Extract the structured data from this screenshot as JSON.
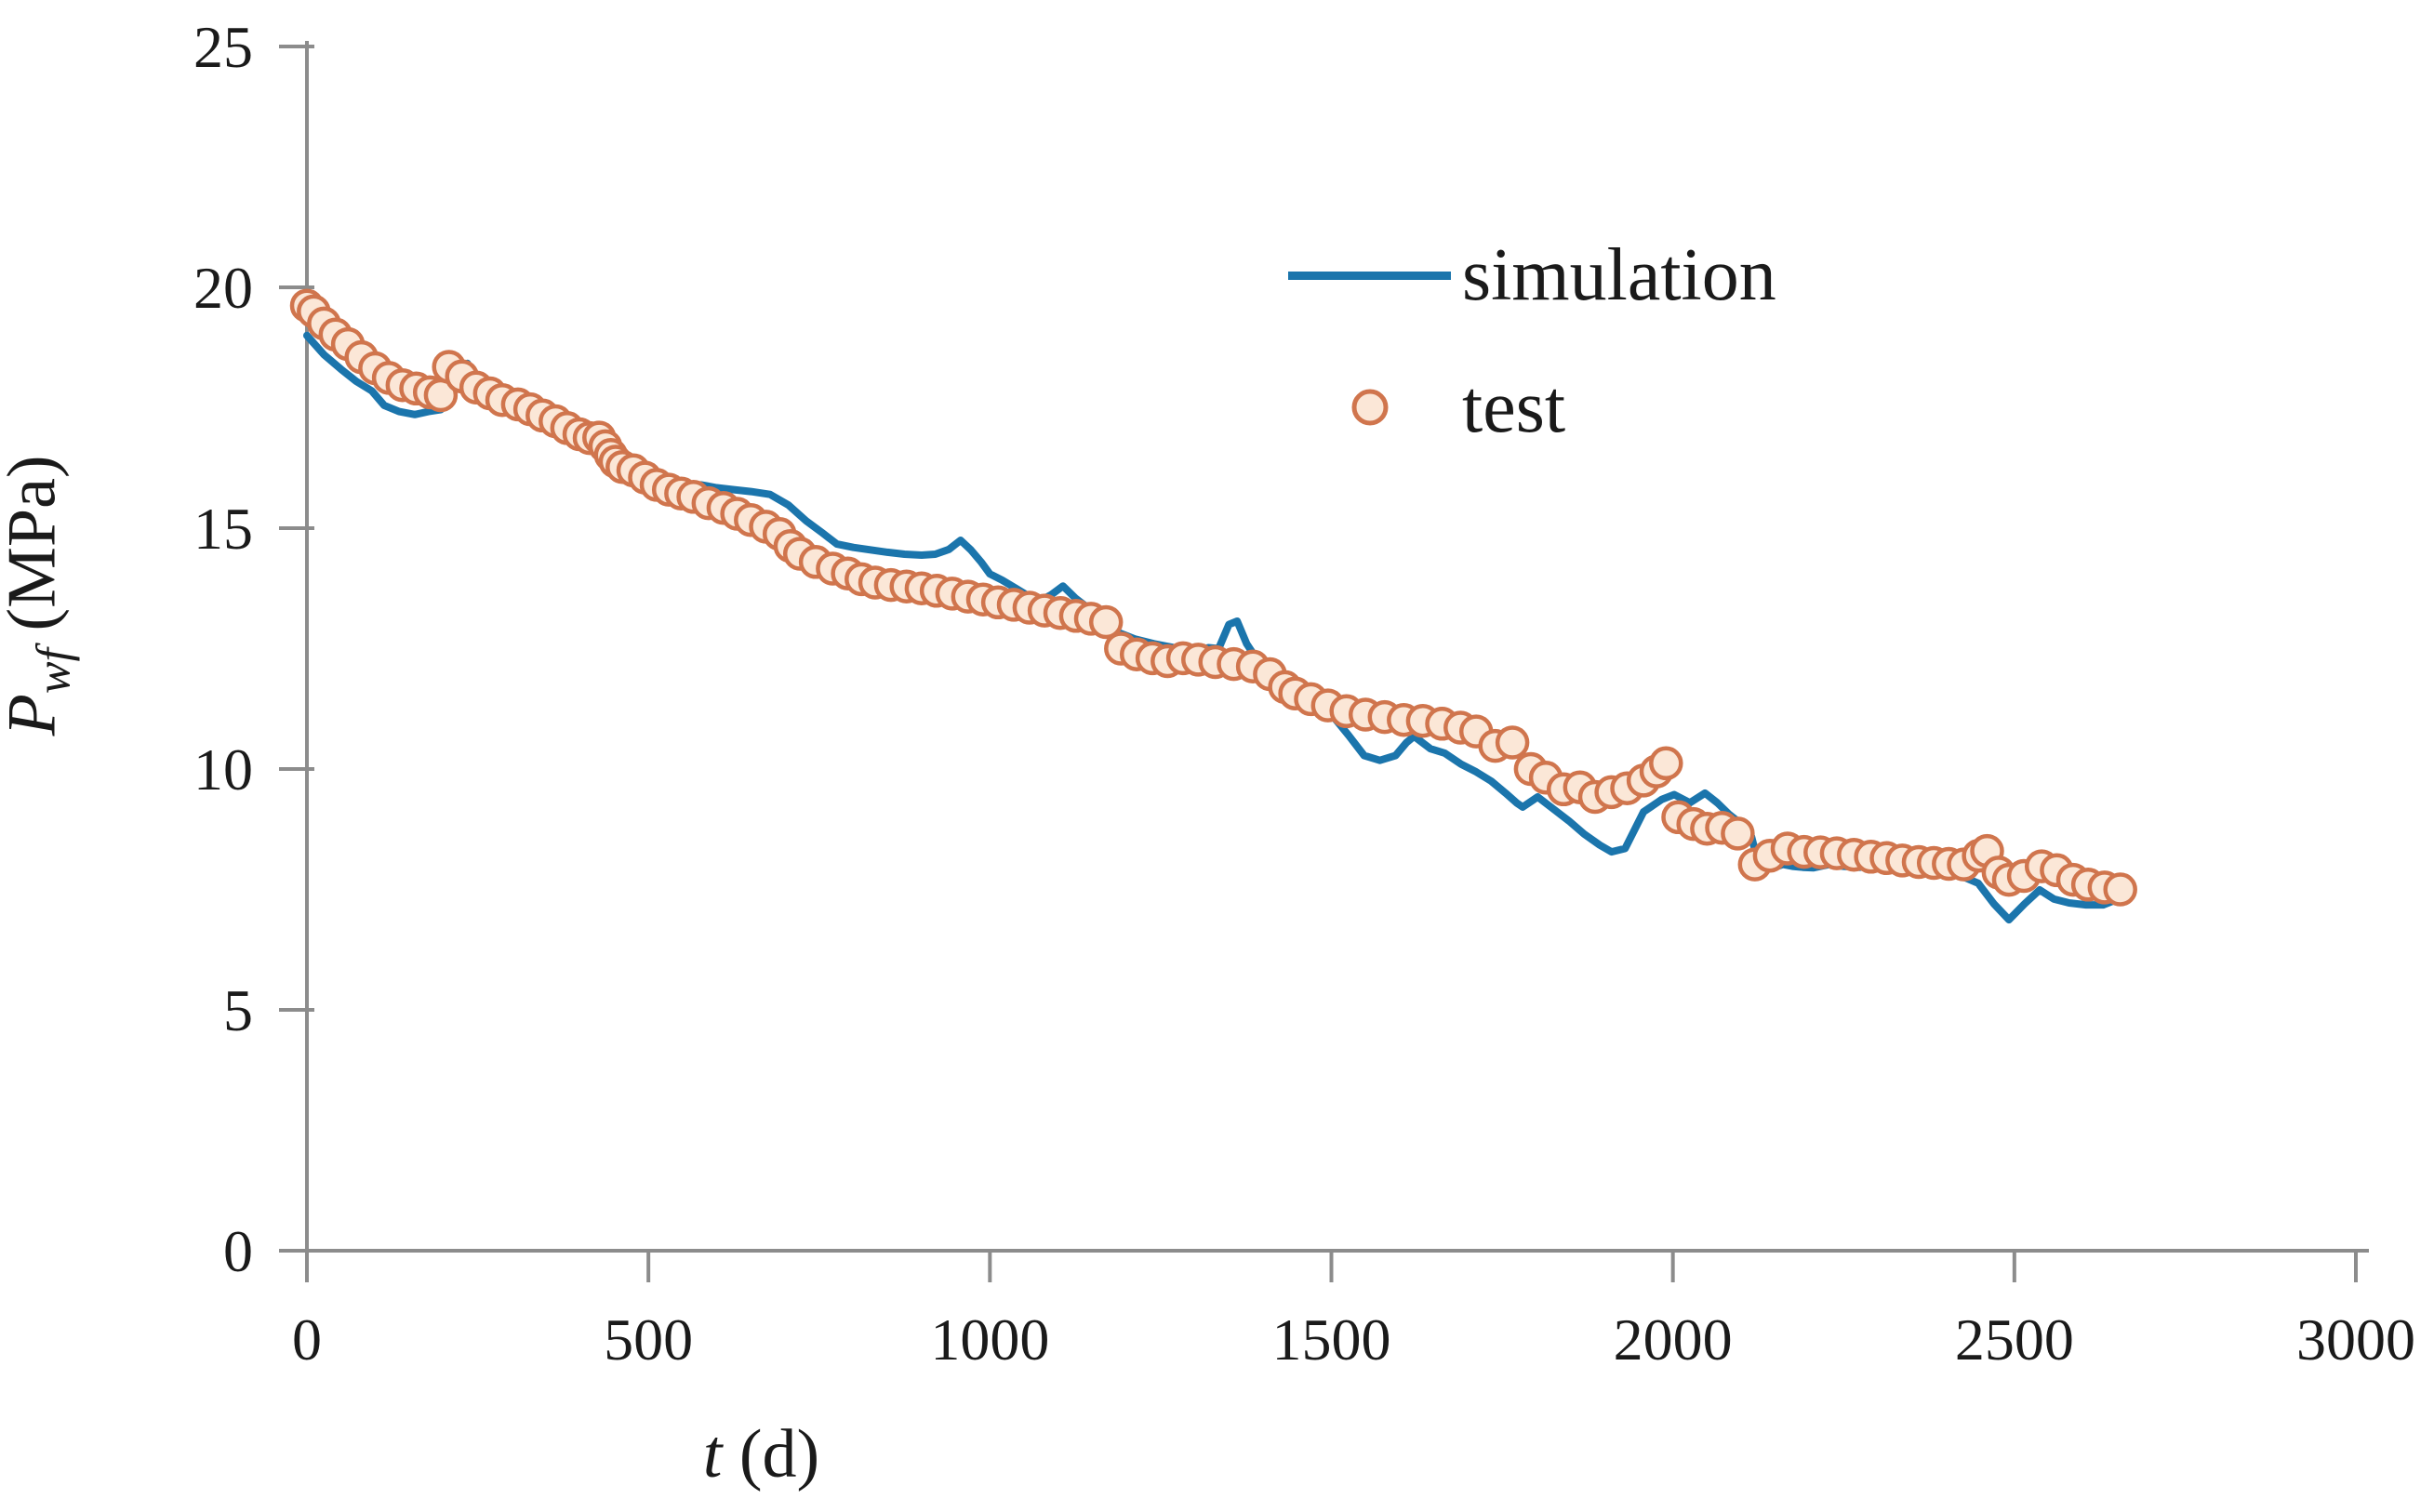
{
  "figure": {
    "background": "#ffffff",
    "text_color": "#1a1a1a",
    "axis_color": "#8c8c8c"
  },
  "chart_data": {
    "type": "line+scatter",
    "title": "",
    "xlabel_var": "t",
    "xlabel_unit": " (d)",
    "ylabel_var": "P",
    "ylabel_sub": "wf",
    "ylabel_unit": " (MPa)",
    "xlim": [
      0,
      3000
    ],
    "ylim": [
      0,
      25
    ],
    "x_ticks": [
      "0",
      "500",
      "1000",
      "1500",
      "2000",
      "2500",
      "3000"
    ],
    "x_tick_values": [
      0,
      500,
      1000,
      1500,
      2000,
      2500,
      3000
    ],
    "y_ticks": [
      "0",
      "5",
      "10",
      "15",
      "20",
      "25"
    ],
    "y_tick_values": [
      0,
      5,
      10,
      15,
      20,
      25
    ],
    "grid": false,
    "legend_position": "upper-right-inside",
    "series": [
      {
        "name": "simulation",
        "type": "line",
        "color": "#1b75ac",
        "line_width": 8,
        "points": [
          [
            0,
            19.0
          ],
          [
            25,
            18.6
          ],
          [
            50,
            18.3
          ],
          [
            72,
            18.05
          ],
          [
            95,
            17.85
          ],
          [
            113,
            17.55
          ],
          [
            135,
            17.42
          ],
          [
            158,
            17.36
          ],
          [
            178,
            17.42
          ],
          [
            196,
            17.46
          ],
          [
            215,
            17.85
          ],
          [
            235,
            18.42
          ],
          [
            250,
            17.95
          ],
          [
            265,
            17.6
          ],
          [
            285,
            17.5
          ],
          [
            305,
            17.4
          ],
          [
            327,
            17.28
          ],
          [
            350,
            17.13
          ],
          [
            372,
            16.95
          ],
          [
            395,
            16.76
          ],
          [
            418,
            16.6
          ],
          [
            432,
            16.45
          ],
          [
            445,
            16.22
          ],
          [
            460,
            16.12
          ],
          [
            478,
            16.1
          ],
          [
            497,
            16.12
          ],
          [
            510,
            16.05
          ],
          [
            528,
            15.92
          ],
          [
            545,
            15.78
          ],
          [
            560,
            15.85
          ],
          [
            577,
            15.9
          ],
          [
            600,
            15.84
          ],
          [
            625,
            15.8
          ],
          [
            650,
            15.76
          ],
          [
            678,
            15.7
          ],
          [
            705,
            15.48
          ],
          [
            731,
            15.15
          ],
          [
            755,
            14.9
          ],
          [
            776,
            14.67
          ],
          [
            800,
            14.6
          ],
          [
            825,
            14.55
          ],
          [
            850,
            14.5
          ],
          [
            875,
            14.46
          ],
          [
            900,
            14.44
          ],
          [
            920,
            14.46
          ],
          [
            940,
            14.56
          ],
          [
            957,
            14.75
          ],
          [
            972,
            14.55
          ],
          [
            987,
            14.3
          ],
          [
            1000,
            14.05
          ],
          [
            1018,
            13.92
          ],
          [
            1038,
            13.75
          ],
          [
            1058,
            13.58
          ],
          [
            1072,
            13.48
          ],
          [
            1090,
            13.62
          ],
          [
            1107,
            13.8
          ],
          [
            1125,
            13.55
          ],
          [
            1145,
            13.33
          ],
          [
            1165,
            13.12
          ],
          [
            1185,
            12.85
          ],
          [
            1212,
            12.7
          ],
          [
            1240,
            12.6
          ],
          [
            1270,
            12.52
          ],
          [
            1300,
            12.45
          ],
          [
            1320,
            12.52
          ],
          [
            1335,
            12.5
          ],
          [
            1350,
            13.0
          ],
          [
            1362,
            13.07
          ],
          [
            1376,
            12.6
          ],
          [
            1390,
            12.3
          ],
          [
            1412,
            11.75
          ],
          [
            1435,
            11.55
          ],
          [
            1457,
            11.35
          ],
          [
            1480,
            11.22
          ],
          [
            1502,
            11.1
          ],
          [
            1525,
            10.7
          ],
          [
            1548,
            10.28
          ],
          [
            1571,
            10.18
          ],
          [
            1594,
            10.28
          ],
          [
            1610,
            10.55
          ],
          [
            1621,
            10.68
          ],
          [
            1645,
            10.42
          ],
          [
            1666,
            10.33
          ],
          [
            1690,
            10.1
          ],
          [
            1712,
            9.94
          ],
          [
            1734,
            9.75
          ],
          [
            1755,
            9.5
          ],
          [
            1771,
            9.3
          ],
          [
            1780,
            9.21
          ],
          [
            1802,
            9.42
          ],
          [
            1825,
            9.17
          ],
          [
            1848,
            8.92
          ],
          [
            1870,
            8.65
          ],
          [
            1893,
            8.42
          ],
          [
            1910,
            8.28
          ],
          [
            1930,
            8.35
          ],
          [
            1957,
            9.11
          ],
          [
            1984,
            9.37
          ],
          [
            2002,
            9.47
          ],
          [
            2025,
            9.3
          ],
          [
            2047,
            9.5
          ],
          [
            2065,
            9.3
          ],
          [
            2083,
            9.05
          ],
          [
            2101,
            8.85
          ],
          [
            2115,
            8.6
          ],
          [
            2124,
            8.1
          ],
          [
            2135,
            7.98
          ],
          [
            2147,
            7.95
          ],
          [
            2161,
            8.02
          ],
          [
            2175,
            7.98
          ],
          [
            2190,
            7.96
          ],
          [
            2206,
            7.95
          ],
          [
            2229,
            8.02
          ],
          [
            2250,
            7.98
          ],
          [
            2274,
            7.96
          ],
          [
            2300,
            8.0
          ],
          [
            2325,
            8.0
          ],
          [
            2350,
            7.97
          ],
          [
            2375,
            7.95
          ],
          [
            2400,
            7.9
          ],
          [
            2425,
            7.76
          ],
          [
            2447,
            7.63
          ],
          [
            2470,
            7.2
          ],
          [
            2492,
            6.87
          ],
          [
            2515,
            7.2
          ],
          [
            2537,
            7.49
          ],
          [
            2558,
            7.3
          ],
          [
            2580,
            7.22
          ],
          [
            2605,
            7.18
          ],
          [
            2630,
            7.18
          ],
          [
            2648,
            7.28
          ],
          [
            2662,
            7.3
          ]
        ]
      },
      {
        "name": "test",
        "type": "scatter",
        "marker": "open-circle",
        "edge_color": "#d0754d",
        "fill_color": "#fbe7d7",
        "marker_radius": 16,
        "marker_stroke": 4.5,
        "points": [
          [
            0,
            19.62
          ],
          [
            10,
            19.5
          ],
          [
            25,
            19.25
          ],
          [
            42,
            19.02
          ],
          [
            60,
            18.82
          ],
          [
            80,
            18.55
          ],
          [
            100,
            18.32
          ],
          [
            120,
            18.12
          ],
          [
            140,
            17.97
          ],
          [
            160,
            17.9
          ],
          [
            180,
            17.82
          ],
          [
            196,
            17.76
          ],
          [
            208,
            18.35
          ],
          [
            227,
            18.15
          ],
          [
            248,
            17.92
          ],
          [
            268,
            17.8
          ],
          [
            286,
            17.66
          ],
          [
            309,
            17.57
          ],
          [
            327,
            17.47
          ],
          [
            345,
            17.34
          ],
          [
            364,
            17.22
          ],
          [
            381,
            17.08
          ],
          [
            399,
            16.95
          ],
          [
            414,
            16.87
          ],
          [
            428,
            16.88
          ],
          [
            437,
            16.7
          ],
          [
            445,
            16.52
          ],
          [
            452,
            16.38
          ],
          [
            462,
            16.27
          ],
          [
            478,
            16.2
          ],
          [
            495,
            16.05
          ],
          [
            512,
            15.9
          ],
          [
            530,
            15.8
          ],
          [
            548,
            15.72
          ],
          [
            566,
            15.65
          ],
          [
            588,
            15.52
          ],
          [
            610,
            15.42
          ],
          [
            630,
            15.3
          ],
          [
            650,
            15.17
          ],
          [
            672,
            15.03
          ],
          [
            692,
            14.88
          ],
          [
            708,
            14.63
          ],
          [
            722,
            14.47
          ],
          [
            745,
            14.3
          ],
          [
            770,
            14.16
          ],
          [
            792,
            14.06
          ],
          [
            812,
            13.94
          ],
          [
            832,
            13.87
          ],
          [
            855,
            13.82
          ],
          [
            878,
            13.79
          ],
          [
            900,
            13.75
          ],
          [
            922,
            13.7
          ],
          [
            945,
            13.64
          ],
          [
            968,
            13.58
          ],
          [
            990,
            13.52
          ],
          [
            1012,
            13.46
          ],
          [
            1035,
            13.41
          ],
          [
            1058,
            13.35
          ],
          [
            1080,
            13.29
          ],
          [
            1103,
            13.24
          ],
          [
            1126,
            13.18
          ],
          [
            1148,
            13.12
          ],
          [
            1170,
            13.05
          ],
          [
            1192,
            12.5
          ],
          [
            1215,
            12.38
          ],
          [
            1238,
            12.3
          ],
          [
            1260,
            12.24
          ],
          [
            1283,
            12.3
          ],
          [
            1305,
            12.27
          ],
          [
            1330,
            12.22
          ],
          [
            1357,
            12.18
          ],
          [
            1385,
            12.13
          ],
          [
            1410,
            11.97
          ],
          [
            1432,
            11.7
          ],
          [
            1447,
            11.57
          ],
          [
            1470,
            11.45
          ],
          [
            1495,
            11.32
          ],
          [
            1522,
            11.2
          ],
          [
            1550,
            11.13
          ],
          [
            1578,
            11.08
          ],
          [
            1606,
            11.02
          ],
          [
            1634,
            11.0
          ],
          [
            1662,
            10.94
          ],
          [
            1689,
            10.86
          ],
          [
            1712,
            10.78
          ],
          [
            1740,
            10.48
          ],
          [
            1765,
            10.55
          ],
          [
            1792,
            10.0
          ],
          [
            1814,
            9.82
          ],
          [
            1840,
            9.58
          ],
          [
            1864,
            9.62
          ],
          [
            1886,
            9.42
          ],
          [
            1910,
            9.52
          ],
          [
            1933,
            9.6
          ],
          [
            1957,
            9.76
          ],
          [
            1976,
            9.95
          ],
          [
            1990,
            10.12
          ],
          [
            2008,
            9.0
          ],
          [
            2030,
            8.86
          ],
          [
            2050,
            8.76
          ],
          [
            2072,
            8.78
          ],
          [
            2095,
            8.66
          ],
          [
            2120,
            8.02
          ],
          [
            2142,
            8.2
          ],
          [
            2168,
            8.35
          ],
          [
            2192,
            8.28
          ],
          [
            2216,
            8.27
          ],
          [
            2240,
            8.25
          ],
          [
            2265,
            8.22
          ],
          [
            2290,
            8.18
          ],
          [
            2313,
            8.15
          ],
          [
            2336,
            8.1
          ],
          [
            2360,
            8.07
          ],
          [
            2382,
            8.05
          ],
          [
            2404,
            8.03
          ],
          [
            2426,
            8.02
          ],
          [
            2448,
            8.2
          ],
          [
            2460,
            8.3
          ],
          [
            2477,
            7.85
          ],
          [
            2492,
            7.7
          ],
          [
            2514,
            7.78
          ],
          [
            2540,
            7.98
          ],
          [
            2562,
            7.9
          ],
          [
            2586,
            7.7
          ],
          [
            2608,
            7.6
          ],
          [
            2632,
            7.54
          ],
          [
            2655,
            7.5
          ]
        ]
      }
    ]
  }
}
